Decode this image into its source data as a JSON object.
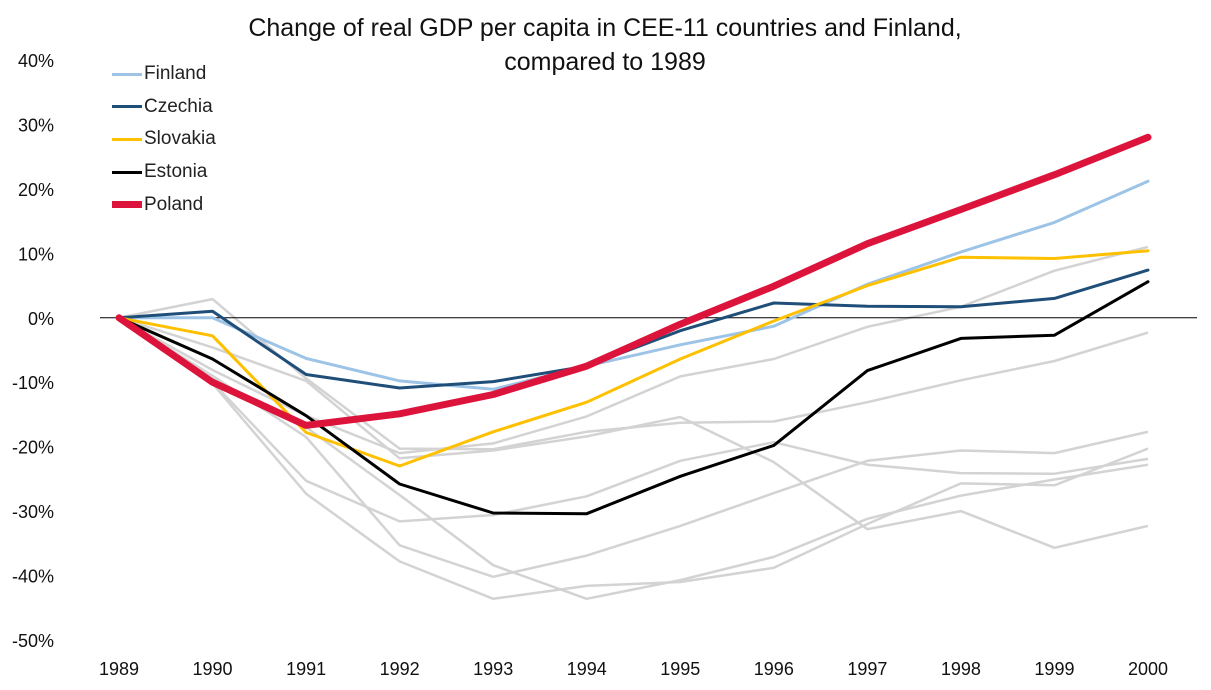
{
  "chart_data": {
    "type": "line",
    "title": "Change of real GDP per capita in CEE-11 countries and Finland,",
    "title_line2": "compared to 1989",
    "xlabel": "",
    "ylabel": "",
    "x": [
      "1989",
      "1990",
      "1991",
      "1992",
      "1993",
      "1994",
      "1995",
      "1996",
      "1997",
      "1998",
      "1999",
      "2000"
    ],
    "ylim": [
      -50,
      40
    ],
    "yticks": [
      40,
      30,
      20,
      10,
      0,
      -10,
      -20,
      -30,
      -40,
      -50
    ],
    "ytick_labels": [
      "40%",
      "30%",
      "20%",
      "10%",
      "0%",
      "-10%",
      "-20%",
      "-30%",
      "-40%",
      "-50%"
    ],
    "grid": false,
    "zero_line": true,
    "legend_position": "top-left",
    "series": [
      {
        "name": "Finland",
        "color": "#9dc3e6",
        "width": 3,
        "values": [
          0,
          0,
          -6.3,
          -9.8,
          -11.1,
          -7.5,
          -4.2,
          -1.3,
          5.2,
          10.2,
          14.8,
          21.2
        ]
      },
      {
        "name": "Czechia",
        "color": "#1f4e79",
        "width": 3,
        "values": [
          0,
          1.0,
          -8.8,
          -10.9,
          -9.9,
          -7.5,
          -2.0,
          2.3,
          1.8,
          1.7,
          3.0,
          7.4
        ]
      },
      {
        "name": "Slovakia",
        "color": "#ffc000",
        "width": 3,
        "values": [
          0,
          -2.8,
          -17.8,
          -23.0,
          -17.7,
          -13.1,
          -6.4,
          -0.5,
          5.0,
          9.4,
          9.2,
          10.4
        ]
      },
      {
        "name": "Estonia",
        "color": "#000000",
        "width": 3,
        "values": [
          0,
          -6.4,
          -15.2,
          -25.8,
          -30.3,
          -30.4,
          -24.6,
          -19.8,
          -8.2,
          -3.2,
          -2.7,
          5.6
        ]
      },
      {
        "name": "Poland",
        "color": "#dc143c",
        "width": 7,
        "values": [
          0,
          -10.0,
          -16.7,
          -14.9,
          -11.9,
          -7.5,
          -1.0,
          4.9,
          11.5,
          16.8,
          22.2,
          28.0
        ]
      }
    ],
    "background_series": [
      {
        "color": "#d3d3d3",
        "values": [
          0,
          2.9,
          -9.4,
          -20.3,
          -20.4,
          -17.7,
          -16.3,
          -16.1,
          -13.1,
          -9.7,
          -6.7,
          -2.3
        ]
      },
      {
        "color": "#d3d3d3",
        "values": [
          0,
          -4.6,
          -9.8,
          -21.8,
          -20.6,
          -18.4,
          -15.4,
          -22.4,
          -32.8,
          -30.0,
          -35.7,
          -32.3
        ]
      },
      {
        "color": "#d3d3d3",
        "values": [
          0,
          -8.1,
          -15.2,
          -21.0,
          -19.5,
          -15.3,
          -9.1,
          -6.4,
          -1.4,
          1.7,
          7.3,
          11.0
        ]
      },
      {
        "color": "#d3d3d3",
        "values": [
          0,
          -9.0,
          -18.5,
          -35.3,
          -40.2,
          -36.9,
          -32.3,
          -27.2,
          -22.2,
          -20.6,
          -21.0,
          -17.7
        ]
      },
      {
        "color": "#d3d3d3",
        "values": [
          0,
          -10.0,
          -25.3,
          -31.6,
          -30.6,
          -27.7,
          -22.2,
          -19.3,
          -22.8,
          -24.1,
          -24.2,
          -21.9
        ]
      },
      {
        "color": "#d3d3d3",
        "values": [
          0,
          -10.2,
          -27.3,
          -37.8,
          -43.6,
          -41.6,
          -41.0,
          -38.8,
          -32.0,
          -25.7,
          -26.0,
          -20.3
        ]
      },
      {
        "color": "#d3d3d3",
        "values": [
          0,
          -9.5,
          -17.0,
          -27.5,
          -38.4,
          -43.6,
          -40.7,
          -37.1,
          -31.2,
          -27.6,
          -25.1,
          -22.8
        ]
      }
    ]
  }
}
